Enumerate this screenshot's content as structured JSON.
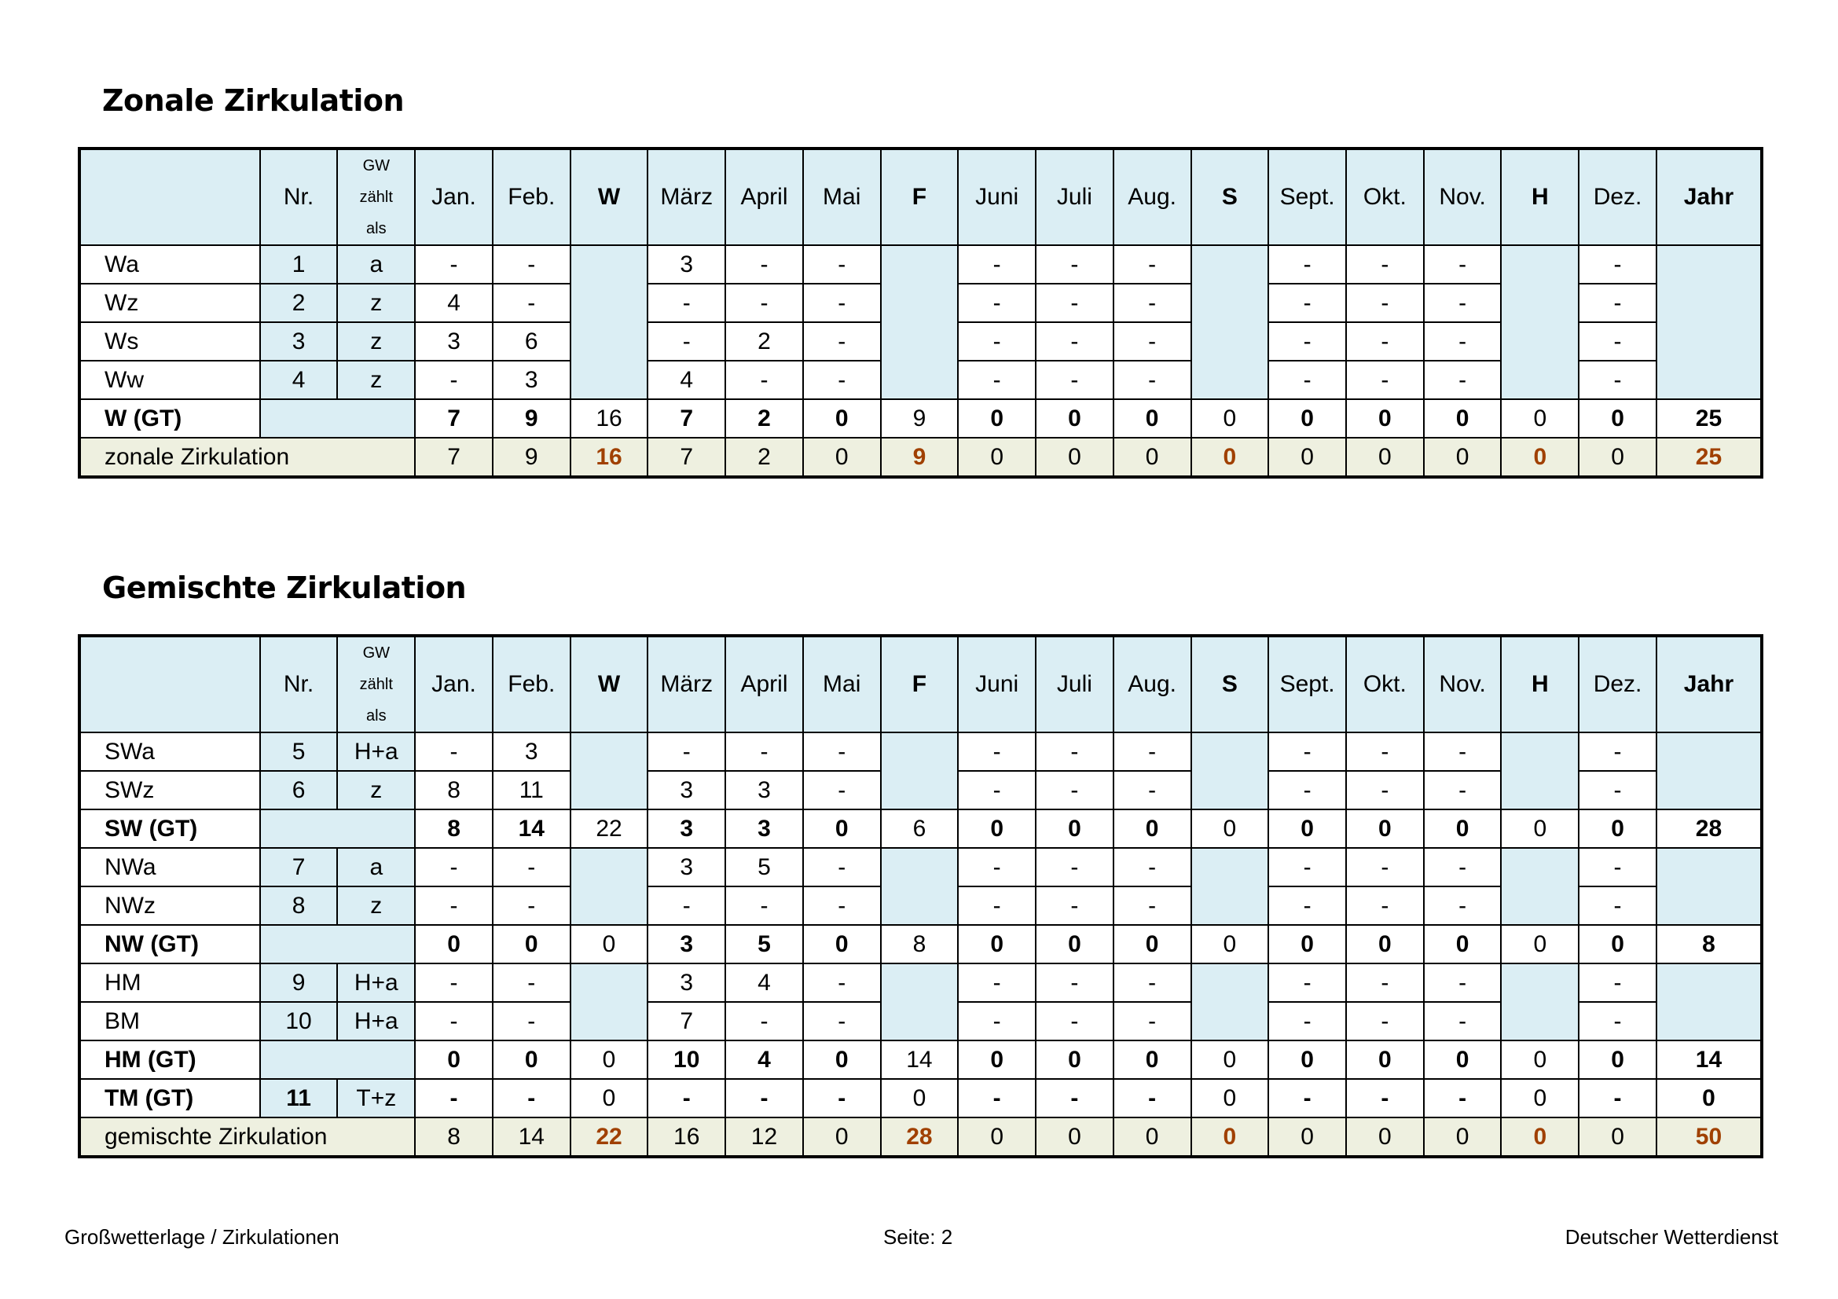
{
  "header_columns": [
    "",
    "Nr.",
    "GW zählt als",
    "Jan.",
    "Feb.",
    "W",
    "März",
    "April",
    "Mai",
    "F",
    "Juni",
    "Juli",
    "Aug.",
    "S",
    "Sept.",
    "Okt.",
    "Nov.",
    "H",
    "Dez.",
    "Jahr"
  ],
  "header_gw_lines": [
    "GW",
    "zählt",
    "als"
  ],
  "sections": [
    {
      "title": "Zonale Zirkulation",
      "rows": [
        {
          "type": "data",
          "name": "Wa",
          "nr": "1",
          "gw": "a",
          "months": [
            "-",
            "-",
            "3",
            "-",
            "-",
            "-",
            "-",
            "-",
            "-",
            "-",
            "-",
            "-"
          ]
        },
        {
          "type": "data",
          "name": "Wz",
          "nr": "2",
          "gw": "z",
          "months": [
            "4",
            "-",
            "-",
            "-",
            "-",
            "-",
            "-",
            "-",
            "-",
            "-",
            "-",
            "-"
          ]
        },
        {
          "type": "data",
          "name": "Ws",
          "nr": "3",
          "gw": "z",
          "months": [
            "3",
            "6",
            "-",
            "2",
            "-",
            "-",
            "-",
            "-",
            "-",
            "-",
            "-",
            "-"
          ]
        },
        {
          "type": "data",
          "name": "Ww",
          "nr": "4",
          "gw": "z",
          "months": [
            "-",
            "3",
            "4",
            "-",
            "-",
            "-",
            "-",
            "-",
            "-",
            "-",
            "-",
            "-"
          ]
        },
        {
          "type": "gt",
          "name": "W (GT)",
          "nr": "",
          "gw": "",
          "months": [
            "7",
            "9",
            "7",
            "2",
            "0",
            "0",
            "0",
            "0",
            "0",
            "0",
            "0",
            "0"
          ],
          "seasons": [
            "16",
            "9",
            "0",
            "0"
          ],
          "year": "25"
        }
      ],
      "total": {
        "name": "zonale Zirkulation",
        "months": [
          "7",
          "9",
          "7",
          "2",
          "0",
          "0",
          "0",
          "0",
          "0",
          "0",
          "0",
          "0"
        ],
        "seasons": [
          "16",
          "9",
          "0",
          "0"
        ],
        "year": "25"
      }
    },
    {
      "title": "Gemischte Zirkulation",
      "rows": [
        {
          "type": "data",
          "name": "SWa",
          "nr": "5",
          "gw": "H+a",
          "months": [
            "-",
            "3",
            "-",
            "-",
            "-",
            "-",
            "-",
            "-",
            "-",
            "-",
            "-",
            "-"
          ]
        },
        {
          "type": "data",
          "name": "SWz",
          "nr": "6",
          "gw": "z",
          "months": [
            "8",
            "11",
            "3",
            "3",
            "-",
            "-",
            "-",
            "-",
            "-",
            "-",
            "-",
            "-"
          ]
        },
        {
          "type": "gt",
          "name": "SW (GT)",
          "nr": "",
          "gw": "",
          "months": [
            "8",
            "14",
            "3",
            "3",
            "0",
            "0",
            "0",
            "0",
            "0",
            "0",
            "0",
            "0"
          ],
          "seasons": [
            "22",
            "6",
            "0",
            "0"
          ],
          "year": "28"
        },
        {
          "type": "data",
          "name": "NWa",
          "nr": "7",
          "gw": "a",
          "months": [
            "-",
            "-",
            "3",
            "5",
            "-",
            "-",
            "-",
            "-",
            "-",
            "-",
            "-",
            "-"
          ]
        },
        {
          "type": "data",
          "name": "NWz",
          "nr": "8",
          "gw": "z",
          "months": [
            "-",
            "-",
            "-",
            "-",
            "-",
            "-",
            "-",
            "-",
            "-",
            "-",
            "-",
            "-"
          ]
        },
        {
          "type": "gt",
          "name": "NW (GT)",
          "nr": "",
          "gw": "",
          "months": [
            "0",
            "0",
            "3",
            "5",
            "0",
            "0",
            "0",
            "0",
            "0",
            "0",
            "0",
            "0"
          ],
          "seasons": [
            "0",
            "8",
            "0",
            "0"
          ],
          "year": "8"
        },
        {
          "type": "data",
          "name": "HM",
          "nr": "9",
          "gw": "H+a",
          "months": [
            "-",
            "-",
            "3",
            "4",
            "-",
            "-",
            "-",
            "-",
            "-",
            "-",
            "-",
            "-"
          ]
        },
        {
          "type": "data",
          "name": "BM",
          "nr": "10",
          "gw": "H+a",
          "months": [
            "-",
            "-",
            "7",
            "-",
            "-",
            "-",
            "-",
            "-",
            "-",
            "-",
            "-",
            "-"
          ]
        },
        {
          "type": "gt",
          "name": "HM (GT)",
          "nr": "",
          "gw": "",
          "months": [
            "0",
            "0",
            "10",
            "4",
            "0",
            "0",
            "0",
            "0",
            "0",
            "0",
            "0",
            "0"
          ],
          "seasons": [
            "0",
            "14",
            "0",
            "0"
          ],
          "year": "14"
        },
        {
          "type": "gt",
          "name": "TM (GT)",
          "nr": "11",
          "gw": "T+z",
          "months": [
            "-",
            "-",
            "-",
            "-",
            "-",
            "-",
            "-",
            "-",
            "-",
            "-",
            "-",
            "-"
          ],
          "seasons": [
            "0",
            "0",
            "0",
            "0"
          ],
          "year": "0"
        }
      ],
      "total": {
        "name": "gemischte Zirkulation",
        "months": [
          "8",
          "14",
          "16",
          "12",
          "0",
          "0",
          "0",
          "0",
          "0",
          "0",
          "0",
          "0"
        ],
        "seasons": [
          "22",
          "28",
          "0",
          "0"
        ],
        "year": "50"
      }
    }
  ],
  "footer": {
    "left": "Großwetterlage / Zirkulationen",
    "center": "Seite: 2",
    "right": "Deutscher Wetterdienst"
  },
  "colors": {
    "header_fill": "#dbeef4",
    "total_fill": "#eef0e0",
    "accent_text": "#a04000"
  }
}
